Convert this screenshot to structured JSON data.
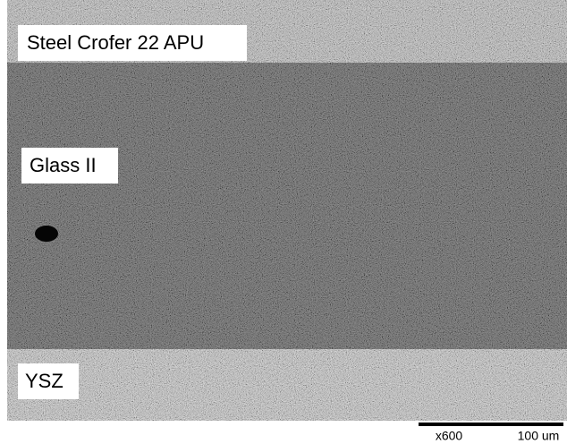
{
  "labels": {
    "steel": "Steel Crofer 22 APU",
    "glass": "Glass II",
    "ysz": "YSZ"
  },
  "scale": {
    "magnification": "x600",
    "bar": "100 um"
  }
}
